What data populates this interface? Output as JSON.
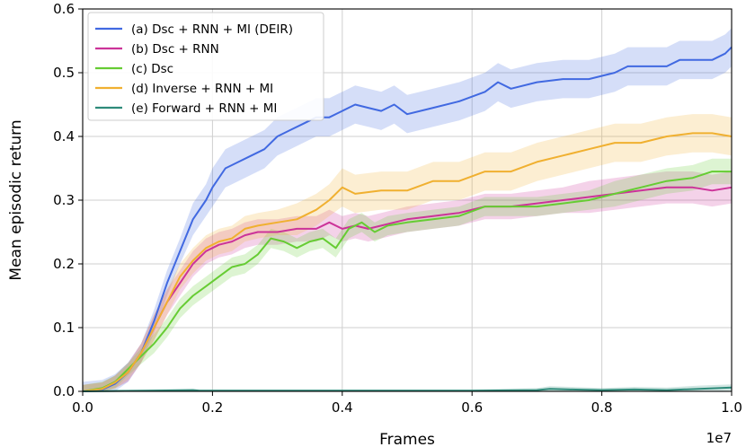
{
  "chart_data": {
    "type": "line",
    "title": "",
    "xlabel": "Frames",
    "ylabel": "Mean episodic return",
    "x_offset_label": "1e7",
    "xlim": [
      0.0,
      1.0
    ],
    "ylim": [
      0.0,
      0.6
    ],
    "x_ticks": [
      0.0,
      0.2,
      0.4,
      0.6,
      0.8,
      1.0
    ],
    "y_ticks": [
      0.0,
      0.1,
      0.2,
      0.3,
      0.4,
      0.5,
      0.6
    ],
    "x_tick_labels": [
      "0.0",
      "0.2",
      "0.4",
      "0.6",
      "0.8",
      "1.0"
    ],
    "y_tick_labels": [
      "0.0",
      "0.1",
      "0.2",
      "0.3",
      "0.4",
      "0.5",
      "0.6"
    ],
    "grid": true,
    "legend_position": "top-left",
    "series": [
      {
        "name": "(a) Dsc + RNN + MI (DEIR)",
        "color": "#4169e1",
        "x": [
          0.0,
          0.03,
          0.05,
          0.07,
          0.09,
          0.11,
          0.13,
          0.15,
          0.17,
          0.19,
          0.2,
          0.22,
          0.24,
          0.26,
          0.28,
          0.3,
          0.32,
          0.34,
          0.36,
          0.38,
          0.4,
          0.42,
          0.44,
          0.46,
          0.48,
          0.5,
          0.54,
          0.58,
          0.62,
          0.64,
          0.66,
          0.7,
          0.74,
          0.78,
          0.82,
          0.84,
          0.88,
          0.9,
          0.92,
          0.94,
          0.97,
          0.99,
          1.0
        ],
        "values": [
          0.0,
          0.003,
          0.012,
          0.03,
          0.06,
          0.11,
          0.17,
          0.22,
          0.27,
          0.3,
          0.32,
          0.35,
          0.36,
          0.37,
          0.38,
          0.4,
          0.41,
          0.42,
          0.43,
          0.43,
          0.44,
          0.45,
          0.445,
          0.44,
          0.45,
          0.435,
          0.445,
          0.455,
          0.47,
          0.485,
          0.475,
          0.485,
          0.49,
          0.49,
          0.5,
          0.51,
          0.51,
          0.51,
          0.52,
          0.52,
          0.52,
          0.53,
          0.54
        ],
        "band": [
          0.015,
          0.015,
          0.015,
          0.015,
          0.015,
          0.018,
          0.02,
          0.02,
          0.025,
          0.025,
          0.03,
          0.03,
          0.03,
          0.03,
          0.03,
          0.03,
          0.03,
          0.03,
          0.03,
          0.03,
          0.03,
          0.03,
          0.03,
          0.03,
          0.03,
          0.03,
          0.03,
          0.03,
          0.03,
          0.03,
          0.03,
          0.03,
          0.03,
          0.03,
          0.03,
          0.03,
          0.03,
          0.03,
          0.03,
          0.03,
          0.03,
          0.03,
          0.03
        ]
      },
      {
        "name": "(b) Dsc + RNN",
        "color": "#cc3399",
        "x": [
          0.0,
          0.03,
          0.05,
          0.07,
          0.09,
          0.11,
          0.13,
          0.15,
          0.17,
          0.19,
          0.21,
          0.23,
          0.25,
          0.27,
          0.3,
          0.33,
          0.36,
          0.38,
          0.4,
          0.42,
          0.44,
          0.46,
          0.5,
          0.54,
          0.58,
          0.62,
          0.66,
          0.7,
          0.74,
          0.78,
          0.82,
          0.86,
          0.9,
          0.94,
          0.97,
          1.0
        ],
        "values": [
          0.0,
          0.004,
          0.015,
          0.03,
          0.06,
          0.1,
          0.14,
          0.17,
          0.2,
          0.22,
          0.23,
          0.235,
          0.245,
          0.25,
          0.25,
          0.255,
          0.255,
          0.265,
          0.255,
          0.26,
          0.255,
          0.26,
          0.27,
          0.275,
          0.28,
          0.29,
          0.29,
          0.295,
          0.3,
          0.305,
          0.31,
          0.315,
          0.32,
          0.32,
          0.315,
          0.32
        ],
        "band": [
          0.01,
          0.01,
          0.01,
          0.015,
          0.015,
          0.02,
          0.02,
          0.02,
          0.02,
          0.02,
          0.02,
          0.02,
          0.02,
          0.02,
          0.02,
          0.02,
          0.02,
          0.02,
          0.02,
          0.02,
          0.02,
          0.02,
          0.02,
          0.02,
          0.02,
          0.02,
          0.02,
          0.02,
          0.02,
          0.025,
          0.025,
          0.025,
          0.025,
          0.025,
          0.025,
          0.025
        ]
      },
      {
        "name": "(c) Dsc",
        "color": "#66cc33",
        "x": [
          0.0,
          0.03,
          0.05,
          0.07,
          0.09,
          0.11,
          0.13,
          0.15,
          0.17,
          0.19,
          0.21,
          0.23,
          0.25,
          0.27,
          0.29,
          0.31,
          0.33,
          0.35,
          0.37,
          0.39,
          0.41,
          0.43,
          0.45,
          0.47,
          0.5,
          0.54,
          0.58,
          0.62,
          0.66,
          0.7,
          0.74,
          0.78,
          0.82,
          0.86,
          0.9,
          0.94,
          0.97,
          1.0
        ],
        "values": [
          0.0,
          0.005,
          0.015,
          0.035,
          0.055,
          0.075,
          0.1,
          0.13,
          0.15,
          0.165,
          0.18,
          0.195,
          0.2,
          0.215,
          0.24,
          0.235,
          0.225,
          0.235,
          0.24,
          0.225,
          0.255,
          0.265,
          0.25,
          0.26,
          0.265,
          0.27,
          0.275,
          0.29,
          0.29,
          0.29,
          0.295,
          0.3,
          0.31,
          0.32,
          0.33,
          0.335,
          0.345,
          0.345
        ],
        "band": [
          0.01,
          0.01,
          0.01,
          0.01,
          0.012,
          0.015,
          0.015,
          0.015,
          0.015,
          0.015,
          0.015,
          0.015,
          0.015,
          0.015,
          0.015,
          0.015,
          0.015,
          0.015,
          0.015,
          0.015,
          0.015,
          0.015,
          0.015,
          0.015,
          0.015,
          0.015,
          0.015,
          0.015,
          0.015,
          0.015,
          0.015,
          0.015,
          0.02,
          0.02,
          0.02,
          0.02,
          0.02,
          0.02
        ]
      },
      {
        "name": "(d) Inverse + RNN + MI",
        "color": "#f0b030",
        "x": [
          0.0,
          0.03,
          0.05,
          0.07,
          0.09,
          0.11,
          0.13,
          0.15,
          0.17,
          0.19,
          0.21,
          0.23,
          0.25,
          0.27,
          0.3,
          0.33,
          0.36,
          0.38,
          0.4,
          0.42,
          0.46,
          0.5,
          0.54,
          0.58,
          0.62,
          0.66,
          0.7,
          0.74,
          0.78,
          0.82,
          0.86,
          0.9,
          0.94,
          0.97,
          1.0
        ],
        "values": [
          0.0,
          0.004,
          0.014,
          0.03,
          0.06,
          0.1,
          0.14,
          0.18,
          0.205,
          0.225,
          0.235,
          0.24,
          0.255,
          0.26,
          0.265,
          0.27,
          0.285,
          0.3,
          0.32,
          0.31,
          0.315,
          0.315,
          0.33,
          0.33,
          0.345,
          0.345,
          0.36,
          0.37,
          0.38,
          0.39,
          0.39,
          0.4,
          0.405,
          0.405,
          0.4
        ],
        "band": [
          0.01,
          0.01,
          0.01,
          0.012,
          0.015,
          0.02,
          0.02,
          0.02,
          0.02,
          0.02,
          0.02,
          0.02,
          0.02,
          0.02,
          0.02,
          0.025,
          0.025,
          0.025,
          0.03,
          0.03,
          0.03,
          0.03,
          0.03,
          0.03,
          0.03,
          0.03,
          0.03,
          0.03,
          0.03,
          0.03,
          0.03,
          0.03,
          0.03,
          0.03,
          0.03
        ]
      },
      {
        "name": "(e) Forward + RNN + MI",
        "color": "#2e8b7a",
        "x": [
          0.0,
          0.1,
          0.17,
          0.18,
          0.2,
          0.3,
          0.4,
          0.5,
          0.6,
          0.7,
          0.72,
          0.75,
          0.8,
          0.85,
          0.9,
          0.95,
          1.0
        ],
        "values": [
          0.0,
          0.001,
          0.002,
          0.001,
          0.001,
          0.001,
          0.001,
          0.001,
          0.001,
          0.002,
          0.004,
          0.003,
          0.002,
          0.003,
          0.002,
          0.004,
          0.006
        ],
        "band": [
          0.002,
          0.002,
          0.002,
          0.002,
          0.002,
          0.002,
          0.002,
          0.002,
          0.002,
          0.003,
          0.004,
          0.004,
          0.003,
          0.004,
          0.004,
          0.005,
          0.005
        ]
      }
    ]
  }
}
